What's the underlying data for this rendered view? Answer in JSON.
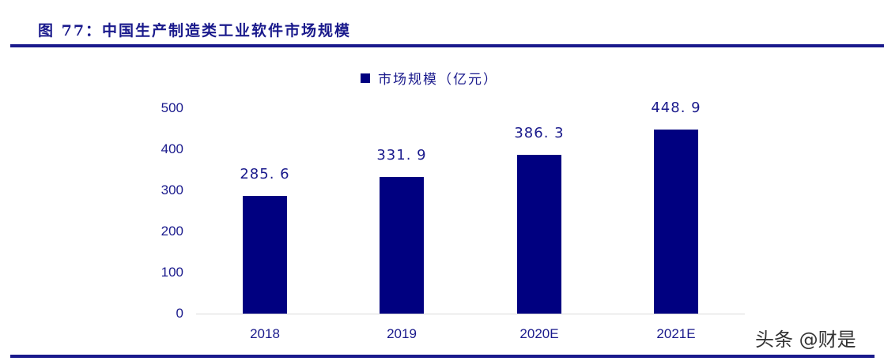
{
  "figure": {
    "title": "图 77：中国生产制造类工业软件市场规模"
  },
  "legend": {
    "label": "市场规模（亿元）",
    "color": "#000080"
  },
  "watermark": "头条 @财是",
  "chart_data": {
    "type": "bar",
    "title": "图 77：中国生产制造类工业软件市场规模",
    "categories": [
      "2018",
      "2019",
      "2020E",
      "2021E"
    ],
    "series": [
      {
        "name": "市场规模（亿元）",
        "values": [
          285.6,
          331.9,
          386.3,
          448.9
        ],
        "color": "#000080"
      }
    ],
    "data_labels": [
      "285. 6",
      "331. 9",
      "386. 3",
      "448. 9"
    ],
    "xlabel": "",
    "ylabel": "",
    "ylim": [
      0,
      500
    ],
    "yticks": [
      "0",
      "100",
      "200",
      "300",
      "400",
      "500"
    ],
    "grid": false,
    "legend_position": "top"
  }
}
